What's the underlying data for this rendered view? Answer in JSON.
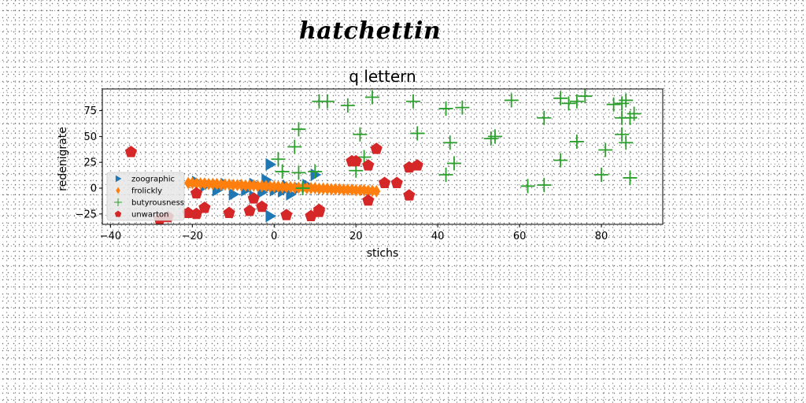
{
  "page": {
    "suptitle": "hatchettin"
  },
  "chart_data": {
    "type": "scatter",
    "title": "q lettern",
    "xlabel": "stichs",
    "ylabel": "redenigrate",
    "xlim": [
      -42,
      95
    ],
    "ylim": [
      -35,
      96
    ],
    "xticks": [
      -40,
      -20,
      0,
      20,
      40,
      60,
      80
    ],
    "yticks": [
      -25,
      0,
      25,
      50,
      75
    ],
    "legend_position": "lower-left",
    "series": [
      {
        "name": "zoographic",
        "marker": "triangle-right",
        "color": "#1f77b4",
        "points": [
          [
            -1,
            23
          ],
          [
            -1,
            -27
          ],
          [
            -3,
            -4
          ],
          [
            -5,
            -8
          ],
          [
            -10,
            -6
          ],
          [
            -7,
            -2
          ],
          [
            -14,
            -2
          ],
          [
            -17,
            2
          ],
          [
            -19,
            6
          ],
          [
            -12,
            4
          ],
          [
            -5,
            4
          ],
          [
            -1,
            2
          ],
          [
            2,
            -3
          ],
          [
            4,
            -6
          ],
          [
            6,
            0
          ],
          [
            8,
            3
          ],
          [
            10,
            13
          ],
          [
            -2,
            8
          ],
          [
            0,
            -2
          ],
          [
            3,
            2
          ]
        ]
      },
      {
        "name": "frolickly",
        "marker": "thin-diamond",
        "color": "#ff7f0e",
        "points": [
          [
            -21,
            5
          ],
          [
            -20,
            5
          ],
          [
            -19,
            4.5
          ],
          [
            -18,
            4.5
          ],
          [
            -17,
            4.5
          ],
          [
            -16,
            4
          ],
          [
            -15,
            4
          ],
          [
            -14,
            4
          ],
          [
            -13,
            3.5
          ],
          [
            -12,
            3.5
          ],
          [
            -11,
            3.5
          ],
          [
            -10,
            3
          ],
          [
            -9,
            3
          ],
          [
            -8,
            3
          ],
          [
            -7,
            2.5
          ],
          [
            -6,
            2.5
          ],
          [
            -5,
            2.5
          ],
          [
            -4,
            2
          ],
          [
            -3,
            2
          ],
          [
            -2,
            2
          ],
          [
            -1,
            1.5
          ],
          [
            0,
            1.5
          ],
          [
            1,
            1.5
          ],
          [
            2,
            1
          ],
          [
            3,
            1
          ],
          [
            4,
            1
          ],
          [
            5,
            0.5
          ],
          [
            6,
            0.5
          ],
          [
            7,
            0.5
          ],
          [
            8,
            0
          ],
          [
            9,
            0
          ],
          [
            10,
            0
          ],
          [
            11,
            -0.5
          ],
          [
            12,
            -0.5
          ],
          [
            13,
            -0.5
          ],
          [
            14,
            -1
          ],
          [
            15,
            -1
          ],
          [
            16,
            -1
          ],
          [
            17,
            -1.5
          ],
          [
            18,
            -1.5
          ],
          [
            19,
            -1.5
          ],
          [
            20,
            -2
          ],
          [
            21,
            -2
          ],
          [
            22,
            -2
          ],
          [
            23,
            -2.5
          ],
          [
            24,
            -2.5
          ],
          [
            25,
            -3
          ]
        ]
      },
      {
        "name": "butyrousness",
        "marker": "plus",
        "color": "#2ca02c",
        "points": [
          [
            11,
            84
          ],
          [
            13,
            84
          ],
          [
            18,
            80
          ],
          [
            24,
            88
          ],
          [
            34,
            84
          ],
          [
            42,
            77
          ],
          [
            46,
            78
          ],
          [
            58,
            85
          ],
          [
            66,
            68
          ],
          [
            70,
            87
          ],
          [
            72,
            82
          ],
          [
            74,
            84
          ],
          [
            76,
            89
          ],
          [
            83,
            81
          ],
          [
            85,
            82
          ],
          [
            86,
            85
          ],
          [
            88,
            72
          ],
          [
            85,
            68
          ],
          [
            87,
            68
          ],
          [
            85,
            52
          ],
          [
            86,
            44
          ],
          [
            81,
            37
          ],
          [
            74,
            45
          ],
          [
            70,
            27
          ],
          [
            66,
            3
          ],
          [
            62,
            2
          ],
          [
            53,
            48
          ],
          [
            54,
            50
          ],
          [
            43,
            44
          ],
          [
            44,
            24
          ],
          [
            42,
            13
          ],
          [
            35,
            53
          ],
          [
            22,
            30
          ],
          [
            21,
            52
          ],
          [
            20,
            17
          ],
          [
            6,
            57
          ],
          [
            5,
            40
          ],
          [
            1,
            28
          ],
          [
            2,
            16
          ],
          [
            6,
            15
          ],
          [
            7,
            0
          ],
          [
            10,
            16
          ],
          [
            80,
            13
          ],
          [
            87,
            10
          ]
        ]
      },
      {
        "name": "unwarton",
        "marker": "pentagon",
        "color": "#d62728",
        "points": [
          [
            -35,
            35
          ],
          [
            -28,
            -30
          ],
          [
            -26,
            -28
          ],
          [
            -21,
            -24
          ],
          [
            -19,
            -25
          ],
          [
            -19,
            -5
          ],
          [
            -17,
            -19
          ],
          [
            -11,
            -24
          ],
          [
            -6,
            -22
          ],
          [
            -5,
            -10
          ],
          [
            -3,
            -18
          ],
          [
            3,
            -26
          ],
          [
            9,
            -27
          ],
          [
            11,
            -23
          ],
          [
            11,
            -21
          ],
          [
            19,
            26
          ],
          [
            20,
            26
          ],
          [
            23,
            22
          ],
          [
            25,
            38
          ],
          [
            23,
            -12
          ],
          [
            27,
            5
          ],
          [
            30,
            5
          ],
          [
            33,
            20
          ],
          [
            35,
            22
          ],
          [
            33,
            -7
          ]
        ]
      }
    ]
  }
}
